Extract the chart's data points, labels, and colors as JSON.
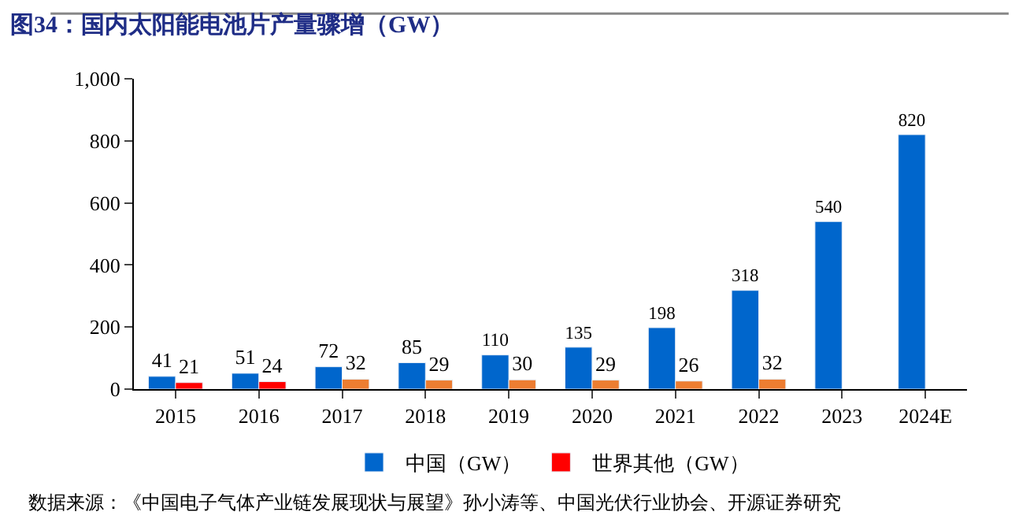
{
  "chart_data": {
    "type": "bar",
    "title": "图34：国内太阳能电池片产量骤增（GW）",
    "categories": [
      "2015",
      "2016",
      "2017",
      "2018",
      "2019",
      "2020",
      "2021",
      "2022",
      "2023",
      "2024E"
    ],
    "series": [
      {
        "name": "中国（GW）",
        "color": "#0066cc",
        "values": [
          41,
          51,
          72,
          85,
          110,
          135,
          198,
          318,
          540,
          820
        ]
      },
      {
        "name": "世界其他（GW）",
        "color": "#ed7d31",
        "colors": [
          "#ff0000",
          "#ff0000",
          "#ed7d31",
          "#ed7d31",
          "#ed7d31",
          "#ed7d31",
          "#ed7d31",
          "#ed7d31",
          "#ed7d31",
          "#ed7d31"
        ],
        "values": [
          21,
          24,
          32,
          29,
          30,
          29,
          26,
          32,
          null,
          null
        ]
      }
    ],
    "ylim": [
      0,
      1000
    ],
    "yticks": [
      0,
      200,
      400,
      600,
      800,
      {
        "value": 1000,
        "label": "1,000"
      }
    ],
    "data_labels": true,
    "legend": "bottom",
    "annotations": [
      "数据来源：《中国电子气体产业链发展现状与展望》孙小涛等、中国光伏行业协会、开源证券研究"
    ]
  }
}
